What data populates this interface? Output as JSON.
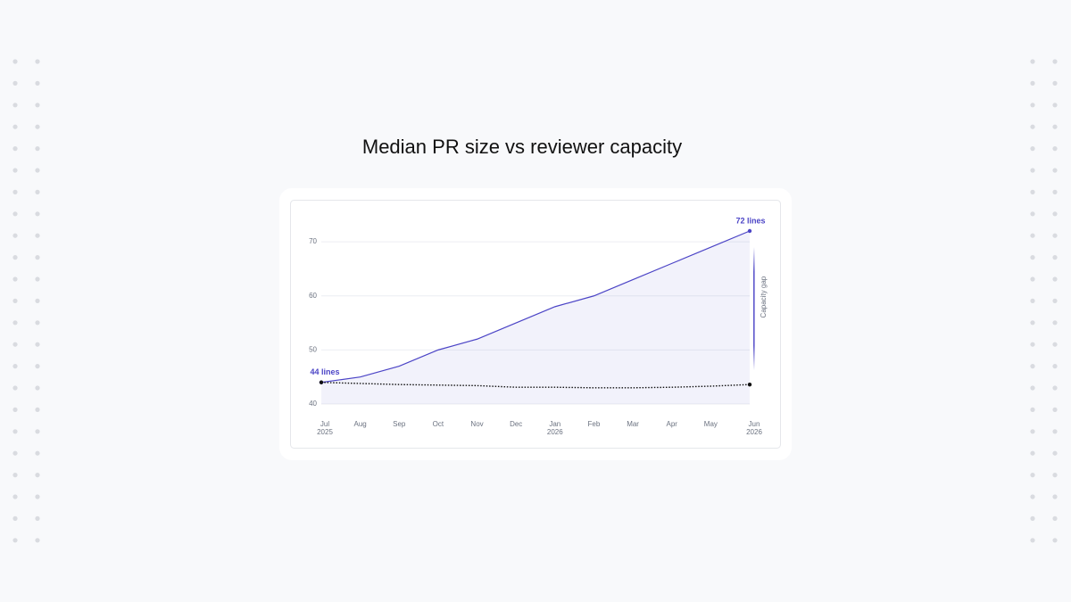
{
  "chart_data": {
    "type": "line",
    "title": "Median PR size vs reviewer capacity",
    "categories": [
      "Jul",
      "Aug",
      "Sep",
      "Oct",
      "Nov",
      "Dec",
      "Jan",
      "Feb",
      "Mar",
      "Apr",
      "May",
      "Jun"
    ],
    "years": [
      "2025",
      null,
      null,
      null,
      null,
      null,
      "2026",
      null,
      null,
      null,
      null,
      "2026"
    ],
    "series": [
      {
        "color": "#4b44c6",
        "area": true,
        "values": [
          44,
          45,
          47,
          50,
          52,
          55,
          58,
          60,
          63,
          66,
          69,
          72
        ],
        "value_labels": [
          "44 lines",
          null,
          null,
          null,
          null,
          null,
          null,
          null,
          null,
          null,
          null,
          "72 lines"
        ]
      },
      {
        "color": "#111111",
        "dotted": true,
        "values": [
          44,
          43.8,
          43.6,
          43.5,
          43.4,
          43.1,
          43.1,
          43,
          43,
          43.1,
          43.3,
          43.6
        ]
      }
    ],
    "annotation": "Capacity gap",
    "ylim": [
      40,
      72
    ],
    "yticks": [
      40,
      50,
      60,
      70
    ],
    "grid": true
  }
}
